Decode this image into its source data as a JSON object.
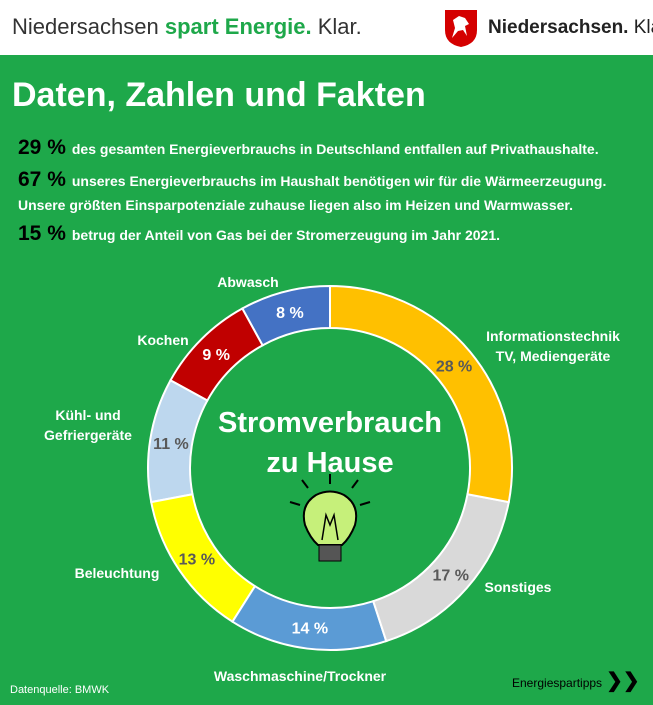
{
  "header": {
    "brand_start": "Niedersachsen",
    "brand_highlight": "spart Energie.",
    "brand_end": "Klar.",
    "logo_text": "Niedersachsen.",
    "logo_end": "Klar."
  },
  "title": "Daten, Zahlen und Fakten",
  "facts": [
    {
      "figure": "29 %",
      "text": "des gesamten Energieverbrauchs in Deutschland entfallen auf Privathaushalte."
    },
    {
      "figure": "67 %",
      "text": "unseres Energieverbrauchs im Haushalt benötigen wir für die Wärmeerzeugung."
    },
    {
      "text": "Unsere größten Einsparpotenziale zuhause liegen also im Heizen und Warmwasser."
    },
    {
      "figure": "15 %",
      "text": "betrug der Anteil von Gas bei der Stromerzeugung im Jahr 2021."
    }
  ],
  "chart_data": {
    "type": "donut",
    "center_text": [
      "Stromverbrauch",
      "zu Hause"
    ],
    "categories": [
      "Informationstechnik\nTV, Mediengeräte",
      "Sonstiges",
      "Waschmaschine/Trockner",
      "Beleuchtung",
      "Kühl- und\nGefriergeräte",
      "Kochen",
      "Abwasch"
    ],
    "values": [
      28,
      17,
      14,
      13,
      11,
      9,
      8
    ],
    "value_labels": [
      "28 %",
      "17 %",
      "14 %",
      "13 %",
      "11 %",
      "9 %",
      "8 %"
    ],
    "colors": [
      "#ffc000",
      "#d9d9d9",
      "#5b9bd5",
      "#ffff00",
      "#bdd7ee",
      "#c00000",
      "#4472c4"
    ]
  },
  "footer": {
    "source": "Datenquelle: BMWK",
    "link": "Energiespartipps"
  }
}
